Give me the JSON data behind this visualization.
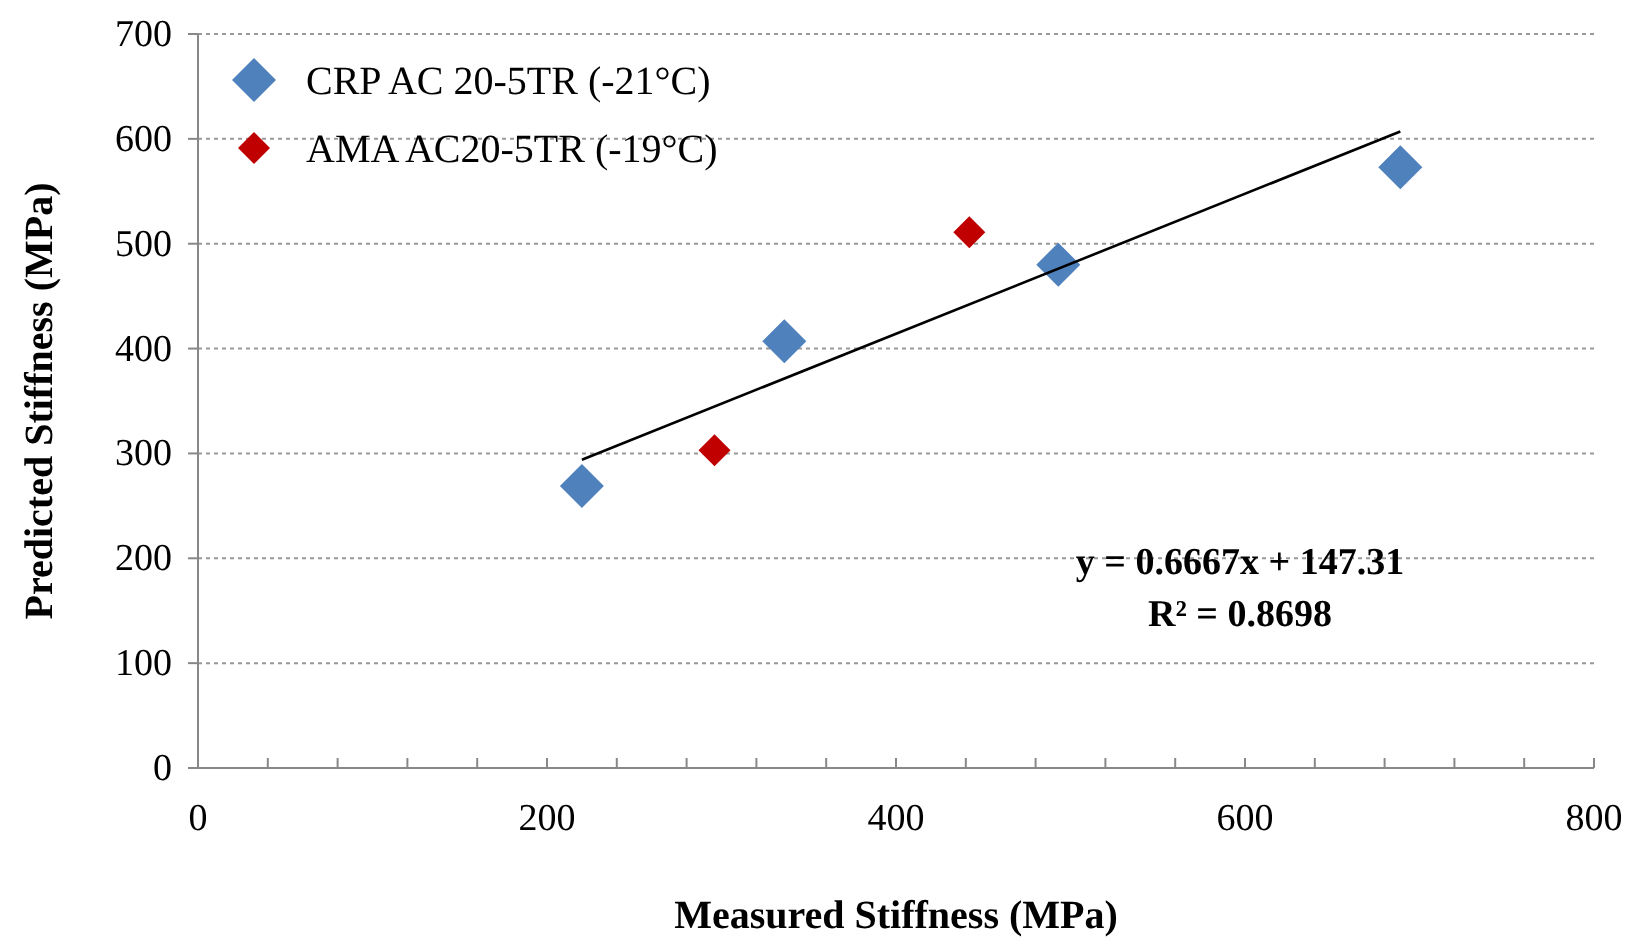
{
  "chart_data": {
    "type": "scatter",
    "xlabel": "Measured Stiffness (MPa)",
    "ylabel": "Predicted Stiffness (MPa)",
    "series": [
      {
        "name": "CRP AC 20-5TR (-21°C)",
        "color": "#4f81bd",
        "x": [
          220,
          336,
          493,
          689
        ],
        "values": [
          269,
          407,
          480,
          573
        ]
      },
      {
        "name": "AMA AC20-5TR (-19°C)",
        "color": "#c00000",
        "x": [
          296,
          442
        ],
        "values": [
          303,
          511
        ]
      },
      {
        "type": "line",
        "color": "#000000",
        "x": [
          220,
          689
        ],
        "values": [
          294,
          607
        ],
        "marker": "none"
      }
    ],
    "xlim": [
      0,
      800
    ],
    "ylim": [
      0,
      700
    ],
    "xticks": [
      0,
      {
        "value": 40,
        "label": null
      },
      {
        "value": 80,
        "label": null
      },
      {
        "value": 120,
        "label": null
      },
      {
        "value": 160,
        "label": null
      },
      200,
      {
        "value": 240,
        "label": null
      },
      {
        "value": 280,
        "label": null
      },
      {
        "value": 320,
        "label": null
      },
      {
        "value": 360,
        "label": null
      },
      400,
      {
        "value": 440,
        "label": null
      },
      {
        "value": 480,
        "label": null
      },
      {
        "value": 520,
        "label": null
      },
      {
        "value": 560,
        "label": null
      },
      600,
      {
        "value": 640,
        "label": null
      },
      {
        "value": 680,
        "label": null
      },
      {
        "value": 720,
        "label": null
      },
      {
        "value": 760,
        "label": null
      },
      800
    ],
    "yticks": [
      0,
      100,
      200,
      300,
      400,
      500,
      600,
      700
    ],
    "grid": "y",
    "legend": "top left",
    "marker": "diamond",
    "annotations": [
      "y = 0.6667x + 147.31",
      "R² = 0.8698"
    ]
  }
}
